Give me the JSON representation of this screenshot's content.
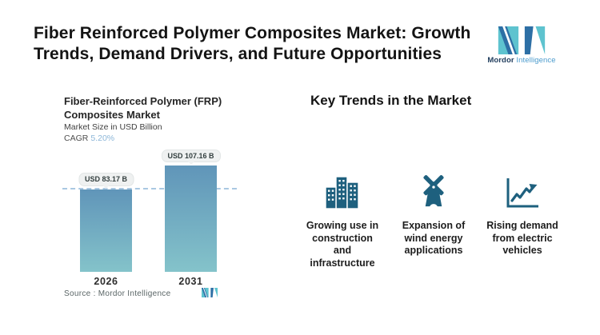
{
  "header": {
    "title_line1": "Fiber Reinforced Polymer Composites Market: Growth",
    "title_line2": "Trends, Demand Drivers, and Future Opportunities",
    "logo": {
      "name_bold": "Mordor",
      "name_light": "Intelligence"
    }
  },
  "chart": {
    "title_line1": "Fiber-Reinforced Polymer (FRP)",
    "title_line2": "Composites Market",
    "subtitle": "Market Size in USD Billion",
    "cagr_label": "CAGR",
    "cagr_value": "5.20%",
    "source": "Source : Mordor Intelligence"
  },
  "chart_data": {
    "type": "bar",
    "title": "Fiber-Reinforced Polymer (FRP) Composites Market",
    "ylabel": "Market Size in USD Billion",
    "categories": [
      "2026",
      "2031"
    ],
    "values": [
      83.17,
      107.16
    ],
    "value_labels": [
      "USD 83.17 B",
      "USD 107.16 B"
    ],
    "cagr": "5.20%",
    "reference_line_value": 83.17,
    "legend": "none",
    "grid": "off",
    "source": "Source : Mordor Intelligence"
  },
  "trends": {
    "heading": "Key Trends in the Market",
    "items": [
      {
        "icon": "buildings-icon",
        "caption": "Growing use in\nconstruction\nand\ninfrastructure"
      },
      {
        "icon": "windmill-icon",
        "caption": "Expansion of\nwind energy\napplications"
      },
      {
        "icon": "growth-chart-icon",
        "caption": "Rising demand\nfrom electric\nvehicles"
      }
    ]
  },
  "colors": {
    "bar_top": "#6095b9",
    "bar_bottom": "#84c3ca",
    "icon": "#1e607e",
    "dashed": "#a9c8e2",
    "pill_bg": "#eff1f1",
    "cagr": "#8cb6d8",
    "logo_teal": "#5ec3cf",
    "logo_blue": "#2d6fa5"
  }
}
